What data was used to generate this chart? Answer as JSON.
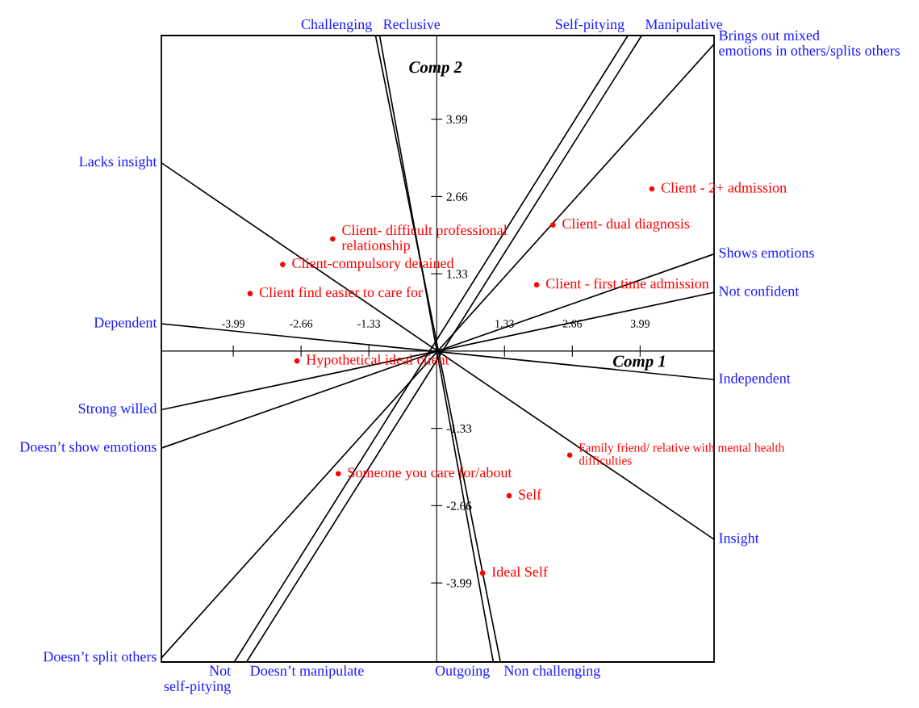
{
  "chart_data": {
    "type": "scatter",
    "xlabel": "Comp 1",
    "ylabel": "Comp 2",
    "xlim": [
      -5.4,
      5.44
    ],
    "ylim": [
      -5.35,
      5.43
    ],
    "xticks": [
      -3.99,
      -2.66,
      -1.33,
      1.33,
      2.66,
      3.99
    ],
    "yticks": [
      -3.99,
      -2.66,
      -1.33,
      1.33,
      2.66,
      3.99
    ],
    "grid": false,
    "legend": false,
    "series": [
      {
        "type": "line",
        "marker": "none",
        "color": "#000000",
        "x": [
          -1.2,
          1.25
        ],
        "values": [
          5.43,
          -5.35
        ]
      },
      {
        "type": "line",
        "marker": "none",
        "color": "#000000",
        "x": [
          -1.12,
          1.11
        ],
        "values": [
          5.43,
          -5.35
        ]
      },
      {
        "type": "line",
        "marker": "none",
        "color": "#000000",
        "x": [
          3.75,
          -3.97
        ],
        "values": [
          5.43,
          -5.35
        ]
      },
      {
        "type": "line",
        "marker": "none",
        "color": "#000000",
        "x": [
          4.02,
          -3.73
        ],
        "values": [
          5.43,
          -5.35
        ]
      },
      {
        "type": "line",
        "marker": "none",
        "color": "#000000",
        "x": [
          5.44,
          -5.4
        ],
        "values": [
          5.28,
          -5.28
        ]
      },
      {
        "type": "line",
        "marker": "none",
        "color": "#000000",
        "x": [
          -5.4,
          5.44
        ],
        "values": [
          3.24,
          -3.24
        ]
      },
      {
        "type": "line",
        "marker": "none",
        "color": "#000000",
        "x": [
          5.44,
          -5.4
        ],
        "values": [
          1.67,
          -1.67
        ]
      },
      {
        "type": "line",
        "marker": "none",
        "color": "#000000",
        "x": [
          5.44,
          -5.4
        ],
        "values": [
          1.01,
          -1.01
        ]
      },
      {
        "type": "line",
        "marker": "none",
        "color": "#000000",
        "x": [
          -5.4,
          5.44
        ],
        "values": [
          0.47,
          -0.49
        ]
      },
      {
        "marker": "circle",
        "color": "#ff0000",
        "x": [
          4.22,
          2.28,
          1.96,
          -2.04,
          -3.02,
          -3.66,
          -2.74,
          2.61,
          -1.93,
          1.42,
          0.9
        ],
        "values": [
          2.79,
          2.17,
          1.14,
          1.93,
          1.49,
          0.99,
          -0.17,
          -1.79,
          -2.11,
          -2.49,
          -3.82
        ]
      }
    ],
    "annotations": [
      {
        "text": "Client - 2+ admission",
        "x": 4.22,
        "y": 2.79
      },
      {
        "text": "Client- dual diagnosis",
        "x": 2.28,
        "y": 2.17
      },
      {
        "text": "Client - first time admission",
        "x": 1.96,
        "y": 1.14
      },
      {
        "text": "Client- difficult professional\nrelationship",
        "x": -2.04,
        "y": 1.93
      },
      {
        "text": "Client-compulsory detained",
        "x": -3.02,
        "y": 1.49
      },
      {
        "text": "Client find easier to care for",
        "x": -3.66,
        "y": 0.99
      },
      {
        "text": "Hypothetical ideal client",
        "x": -2.74,
        "y": -0.17
      },
      {
        "text": "Family friend/ relative with mental health\ndifficulties",
        "x": 2.61,
        "y": -1.79
      },
      {
        "text": "Someone you care for/about",
        "x": -1.93,
        "y": -2.11
      },
      {
        "text": "Self",
        "x": 1.42,
        "y": -2.49
      },
      {
        "text": "Ideal Self",
        "x": 0.9,
        "y": -3.82
      },
      {
        "text": "Challenging",
        "x": -1.2,
        "y": 5.43
      },
      {
        "text": "Non challenging",
        "x": 1.25,
        "y": -5.35
      },
      {
        "text": "Reclusive",
        "x": -1.12,
        "y": 5.43
      },
      {
        "text": "Outgoing",
        "x": 1.11,
        "y": -5.35
      },
      {
        "text": "Self-pitying",
        "x": 3.75,
        "y": 5.43
      },
      {
        "text": "Not\nself-pitying",
        "x": -3.97,
        "y": -5.35
      },
      {
        "text": "Manipulative",
        "x": 4.02,
        "y": 5.43
      },
      {
        "text": "Doesn’t manipulate",
        "x": -3.73,
        "y": -5.35
      },
      {
        "text": "Brings out mixed\nemotions in others/splits others",
        "x": 5.44,
        "y": 5.28
      },
      {
        "text": "Doesn’t split others",
        "x": -5.4,
        "y": -5.28
      },
      {
        "text": "Lacks insight",
        "x": -5.4,
        "y": 3.24
      },
      {
        "text": "Insight",
        "x": 5.44,
        "y": -3.24
      },
      {
        "text": "Shows emotions",
        "x": 5.44,
        "y": 1.67
      },
      {
        "text": "Doesn’t show emotions",
        "x": -5.4,
        "y": -1.67
      },
      {
        "text": "Not confident",
        "x": 5.44,
        "y": 1.01
      },
      {
        "text": "Strong willed",
        "x": -5.4,
        "y": -1.01
      },
      {
        "text": "Dependent",
        "x": -5.4,
        "y": 0.47
      },
      {
        "text": "Independent",
        "x": 5.44,
        "y": -0.49
      }
    ]
  }
}
